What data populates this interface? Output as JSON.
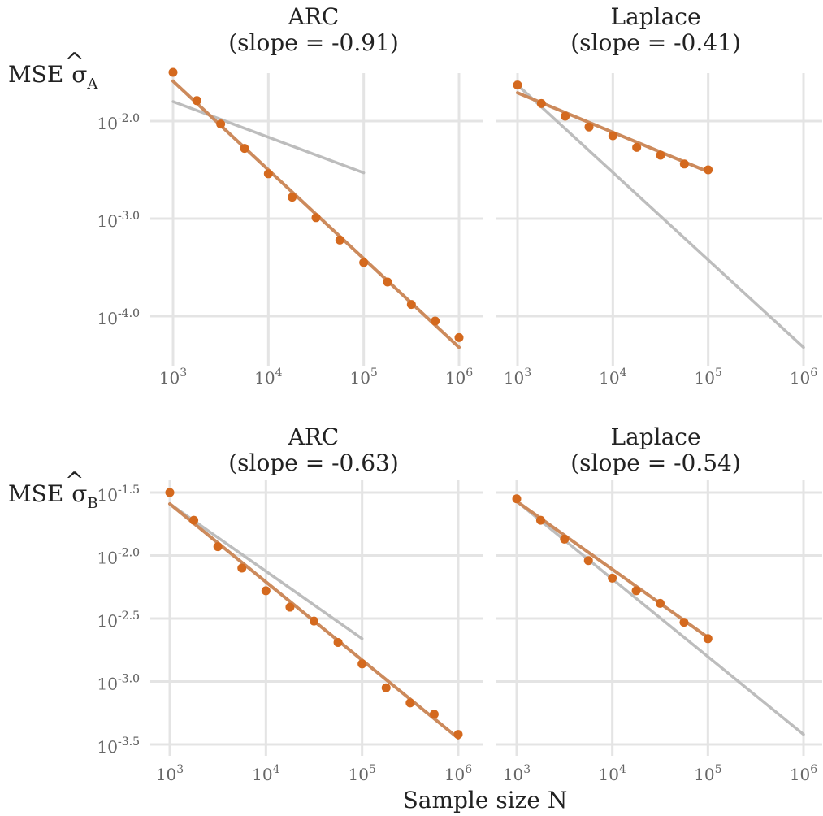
{
  "figure": {
    "xlabel": "Sample size N",
    "colors": {
      "fit": "#cc8a5c",
      "point": "#d4691e",
      "reference": "#bdbdbd",
      "grid": "#e4e4e4"
    }
  },
  "rows": [
    {
      "label_main": "MSE",
      "label_symbol": "σ",
      "label_hat": "^",
      "label_sub": "A"
    },
    {
      "label_main": "MSE",
      "label_symbol": "σ",
      "label_hat": "^",
      "label_sub": "B"
    }
  ],
  "chart_data": [
    {
      "type": "scatter",
      "panel": "ARC, row A",
      "title_line1": "ARC",
      "title_line2": "(slope = -0.91)",
      "xscale": "log",
      "yscale": "log",
      "xlim": [
        3,
        6
      ],
      "ylim": [
        -4.5,
        -1.5
      ],
      "xticks": [
        {
          "v": 3,
          "label": "10",
          "exp": "3"
        },
        {
          "v": 4,
          "label": "10",
          "exp": "4"
        },
        {
          "v": 5,
          "label": "10",
          "exp": "5"
        },
        {
          "v": 6,
          "label": "10",
          "exp": "6"
        }
      ],
      "yticks": [
        {
          "v": -2.0,
          "label": "10",
          "exp": "-2.0"
        },
        {
          "v": -3.0,
          "label": "10",
          "exp": "-3.0"
        },
        {
          "v": -4.0,
          "label": "10",
          "exp": "-4.0"
        }
      ],
      "points": [
        [
          3.0,
          -1.5
        ],
        [
          3.25,
          -1.79
        ],
        [
          3.5,
          -2.03
        ],
        [
          3.75,
          -2.28
        ],
        [
          4.0,
          -2.54
        ],
        [
          4.25,
          -2.78
        ],
        [
          4.5,
          -2.99
        ],
        [
          4.75,
          -3.22
        ],
        [
          5.0,
          -3.45
        ],
        [
          5.25,
          -3.65
        ],
        [
          5.5,
          -3.88
        ],
        [
          5.75,
          -4.05
        ],
        [
          6.0,
          -4.22
        ]
      ],
      "fit": [
        [
          3.0,
          -1.59
        ],
        [
          6.0,
          -4.32
        ]
      ],
      "reference": [
        [
          3.0,
          -1.8
        ],
        [
          5.0,
          -2.53
        ]
      ],
      "grid": true
    },
    {
      "type": "scatter",
      "panel": "Laplace, row A",
      "title_line1": "Laplace",
      "title_line2": "(slope = -0.41)",
      "xscale": "log",
      "yscale": "log",
      "xlim": [
        3,
        6
      ],
      "ylim": [
        -4.5,
        -1.5
      ],
      "xticks": [
        {
          "v": 3,
          "label": "10",
          "exp": "3"
        },
        {
          "v": 4,
          "label": "10",
          "exp": "4"
        },
        {
          "v": 5,
          "label": "10",
          "exp": "5"
        },
        {
          "v": 6,
          "label": "10",
          "exp": "6"
        }
      ],
      "yticks": [
        {
          "v": -2.0,
          "label": "10",
          "exp": "-2.0"
        },
        {
          "v": -3.0,
          "label": "10",
          "exp": "-3.0"
        },
        {
          "v": -4.0,
          "label": "10",
          "exp": "-4.0"
        }
      ],
      "points": [
        [
          3.0,
          -1.63
        ],
        [
          3.25,
          -1.82
        ],
        [
          3.5,
          -1.95
        ],
        [
          3.75,
          -2.06
        ],
        [
          4.0,
          -2.15
        ],
        [
          4.25,
          -2.27
        ],
        [
          4.5,
          -2.35
        ],
        [
          4.75,
          -2.44
        ],
        [
          5.0,
          -2.5
        ]
      ],
      "fit": [
        [
          3.0,
          -1.71
        ],
        [
          5.0,
          -2.52
        ]
      ],
      "reference": [
        [
          3.0,
          -1.63
        ],
        [
          6.0,
          -4.32
        ]
      ],
      "grid": true
    },
    {
      "type": "scatter",
      "panel": "ARC, row B",
      "title_line1": "ARC",
      "title_line2": "(slope = -0.63)",
      "xscale": "log",
      "yscale": "log",
      "xlim": [
        3,
        6
      ],
      "ylim": [
        -3.5,
        -1.5
      ],
      "xticks": [
        {
          "v": 3,
          "label": "10",
          "exp": "3"
        },
        {
          "v": 4,
          "label": "10",
          "exp": "4"
        },
        {
          "v": 5,
          "label": "10",
          "exp": "5"
        },
        {
          "v": 6,
          "label": "10",
          "exp": "6"
        }
      ],
      "yticks": [
        {
          "v": -1.5,
          "label": "10",
          "exp": "-1.5"
        },
        {
          "v": -2.0,
          "label": "10",
          "exp": "-2.0"
        },
        {
          "v": -2.5,
          "label": "10",
          "exp": "-2.5"
        },
        {
          "v": -3.0,
          "label": "10",
          "exp": "-3.0"
        },
        {
          "v": -3.5,
          "label": "10",
          "exp": "-3.5"
        }
      ],
      "points": [
        [
          3.0,
          -1.5
        ],
        [
          3.25,
          -1.72
        ],
        [
          3.5,
          -1.93
        ],
        [
          3.75,
          -2.1
        ],
        [
          4.0,
          -2.28
        ],
        [
          4.25,
          -2.41
        ],
        [
          4.5,
          -2.52
        ],
        [
          4.75,
          -2.69
        ],
        [
          5.0,
          -2.86
        ],
        [
          5.25,
          -3.05
        ],
        [
          5.5,
          -3.17
        ],
        [
          5.75,
          -3.26
        ],
        [
          6.0,
          -3.42
        ]
      ],
      "fit": [
        [
          3.0,
          -1.59
        ],
        [
          6.0,
          -3.45
        ]
      ],
      "reference": [
        [
          3.0,
          -1.59
        ],
        [
          5.0,
          -2.66
        ]
      ],
      "grid": true
    },
    {
      "type": "scatter",
      "panel": "Laplace, row B",
      "title_line1": "Laplace",
      "title_line2": "(slope = -0.54)",
      "xscale": "log",
      "yscale": "log",
      "xlim": [
        3,
        6
      ],
      "ylim": [
        -3.5,
        -1.5
      ],
      "xticks": [
        {
          "v": 3,
          "label": "10",
          "exp": "3"
        },
        {
          "v": 4,
          "label": "10",
          "exp": "4"
        },
        {
          "v": 5,
          "label": "10",
          "exp": "5"
        },
        {
          "v": 6,
          "label": "10",
          "exp": "6"
        }
      ],
      "yticks": [
        {
          "v": -1.5,
          "label": "10",
          "exp": "-1.5"
        },
        {
          "v": -2.0,
          "label": "10",
          "exp": "-2.0"
        },
        {
          "v": -2.5,
          "label": "10",
          "exp": "-2.5"
        },
        {
          "v": -3.0,
          "label": "10",
          "exp": "-3.0"
        },
        {
          "v": -3.5,
          "label": "10",
          "exp": "-3.5"
        }
      ],
      "points": [
        [
          3.0,
          -1.55
        ],
        [
          3.25,
          -1.72
        ],
        [
          3.5,
          -1.87
        ],
        [
          3.75,
          -2.04
        ],
        [
          4.0,
          -2.18
        ],
        [
          4.25,
          -2.28
        ],
        [
          4.5,
          -2.38
        ],
        [
          4.75,
          -2.53
        ],
        [
          5.0,
          -2.66
        ]
      ],
      "fit": [
        [
          3.0,
          -1.57
        ],
        [
          5.0,
          -2.65
        ]
      ],
      "reference": [
        [
          3.0,
          -1.57
        ],
        [
          6.0,
          -3.42
        ]
      ],
      "grid": true
    }
  ]
}
